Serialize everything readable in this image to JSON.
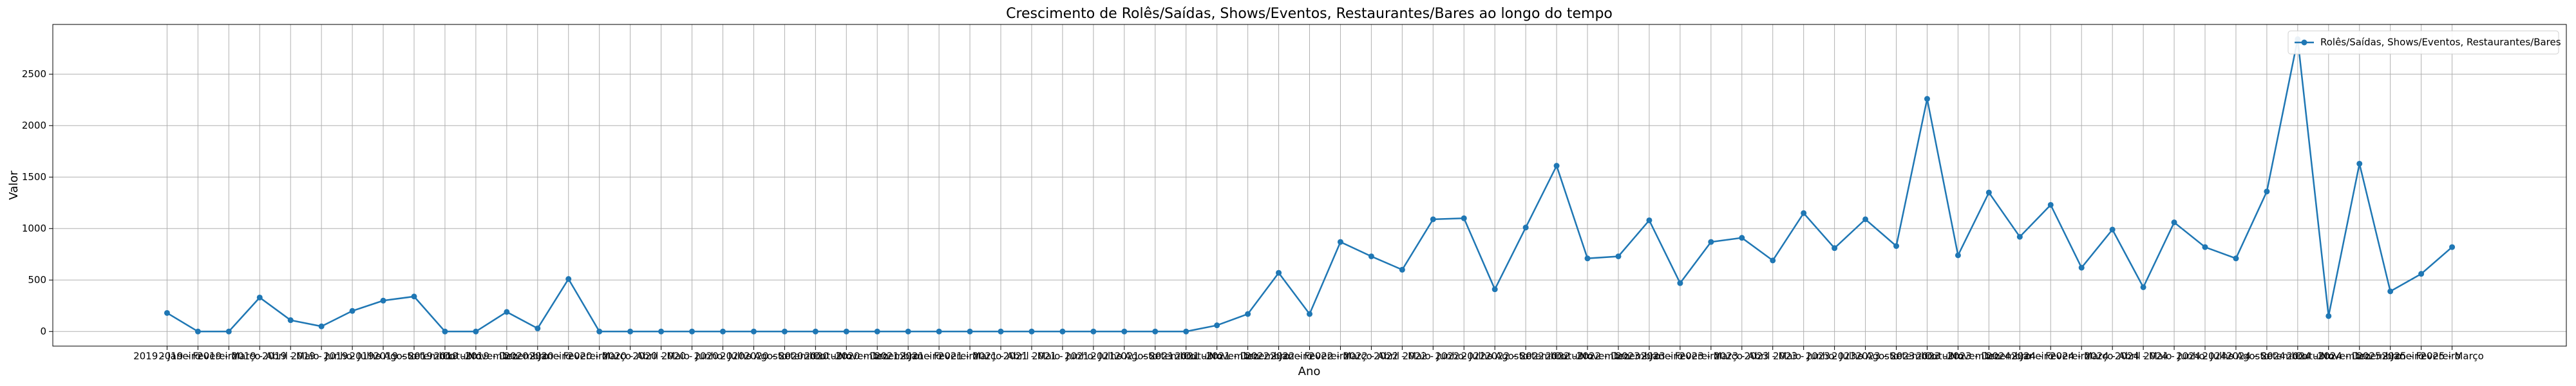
{
  "chart_data": {
    "type": "line",
    "title": "Crescimento de Rolês/Saídas, Shows/Eventos, Restaurantes/Bares ao longo do tempo",
    "x_label": "Ano",
    "y_label": "Valor",
    "categories": [
      "2019 - Janeiro",
      "2019 - Fevereiro",
      "2019 - Março",
      "2019 - Abril",
      "2019 - Maio",
      "2019 - Junho",
      "2019 - Julho",
      "2019 - Agosto",
      "2019 - Setembro",
      "2019 - Outubro",
      "2019 - Novembro",
      "2019 - Dezembro",
      "2020 - Janeiro",
      "2020 - Fevereiro",
      "2020 - Março",
      "2020 - Abril",
      "2020 - Maio",
      "2020 - Junho",
      "2020 - Julho",
      "2020 - Agosto",
      "2020 - Setembro",
      "2020 - Outubro",
      "2020 - Novembro",
      "2020 - Dezembro",
      "2021 - Janeiro",
      "2021 - Fevereiro",
      "2021 - Março",
      "2021 - Abril",
      "2021 - Maio",
      "2021 - Junho",
      "2021 - Julho",
      "2021 - Agosto",
      "2021 - Setembro",
      "2021 - Outubro",
      "2021 - Novembro",
      "2021 - Dezembro",
      "2022 - Janeiro",
      "2022 - Fevereiro",
      "2022 - Março",
      "2022 - Abril",
      "2022 - Maio",
      "2022 - Junho",
      "2022 - Julho",
      "2022 - Agosto",
      "2022 - Setembro",
      "2022 - Outubro",
      "2022 - Novembro",
      "2022 - Dezembro",
      "2023 - Janeiro",
      "2023 - Fevereiro",
      "2023 - Março",
      "2023 - Abril",
      "2023 - Maio",
      "2023 - Junho",
      "2023 - Julho",
      "2023 - Agosto",
      "2023 - Setembro",
      "2023 - Outubro",
      "2023 - Novembro",
      "2023 - Dezembro",
      "2024 - Janeiro",
      "2024 - Fevereiro",
      "2024 - Março",
      "2024 - Abril",
      "2024 - Maio",
      "2024 - Junho",
      "2024 - Julho",
      "2024 - Agosto",
      "2024 - Setembro",
      "2024 - Outubro",
      "2024 - Novembro",
      "2024 - Dezembro",
      "2025 - Janeiro",
      "2025 - Fevereiro",
      "2025 - Março"
    ],
    "series": [
      {
        "name": "Rolês/Saídas, Shows/Eventos, Restaurantes/Bares",
        "color": "#1f77b4",
        "values": [
          180,
          0,
          0,
          330,
          110,
          50,
          200,
          300,
          340,
          0,
          0,
          190,
          30,
          510,
          0,
          0,
          0,
          0,
          0,
          0,
          0,
          0,
          0,
          0,
          0,
          0,
          0,
          0,
          0,
          0,
          0,
          0,
          0,
          0,
          60,
          170,
          570,
          170,
          870,
          730,
          600,
          1090,
          1100,
          410,
          1010,
          1610,
          710,
          730,
          1080,
          470,
          870,
          910,
          690,
          1150,
          810,
          1090,
          830,
          2260,
          740,
          1350,
          920,
          1230,
          620,
          990,
          430,
          1060,
          820,
          710,
          1360,
          2840,
          150,
          1630,
          390,
          560,
          820
        ]
      }
    ],
    "ylim": [
      -142,
      2983
    ],
    "yticks": [
      0,
      500,
      1000,
      1500,
      2000,
      2500
    ],
    "grid": true,
    "legend": "upper right"
  }
}
